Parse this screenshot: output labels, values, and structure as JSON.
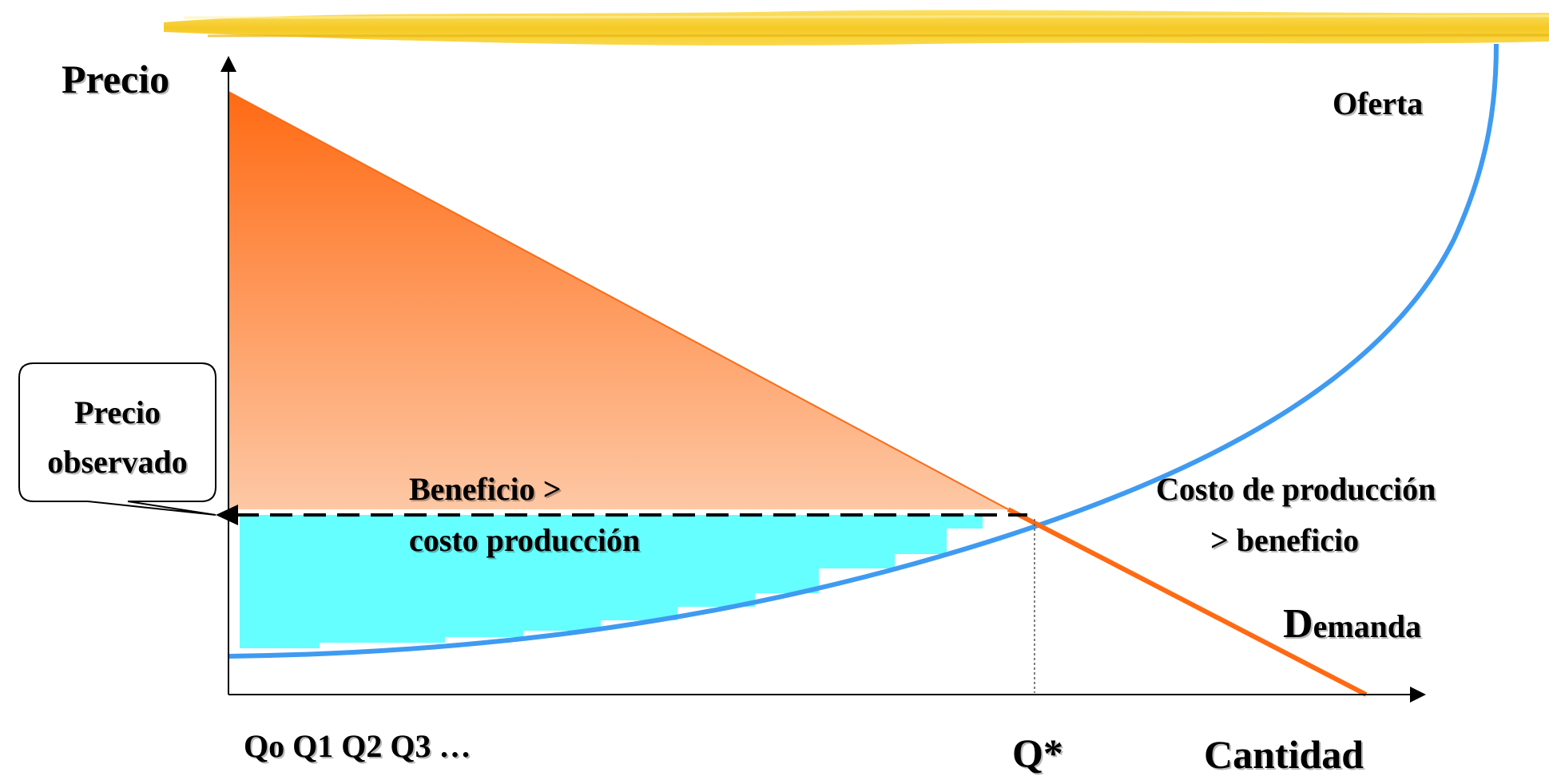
{
  "axes": {
    "y_label": "Precio",
    "x_label": "Cantidad"
  },
  "curves": {
    "supply_label": "Oferta",
    "demand_label_initial": "D",
    "demand_label_rest": "emanda"
  },
  "callout": {
    "line1": "Precio",
    "line2": "observado"
  },
  "areas": {
    "benefit_line1": "Beneficio >",
    "benefit_line2": "costo producción",
    "cost_line1": "Costo de producción",
    "cost_line2": ">  beneficio"
  },
  "ticks": {
    "q_sequence": "Qo Q1 Q2 Q3 …",
    "q_star": "Q*"
  },
  "colors": {
    "supply_curve": "#3f9bf1",
    "demand_curve": "#ff6a13",
    "surplus_top": "#ff6a13",
    "surplus_bottom": "#fdc8a5",
    "producer_area": "#66ffff",
    "header_band": "#f7cf35",
    "axis": "#000000"
  }
}
